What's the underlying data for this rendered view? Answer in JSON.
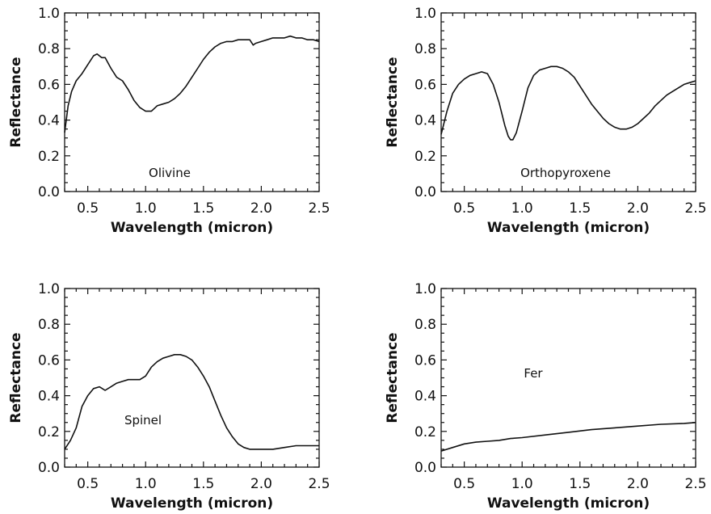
{
  "chart_data": [
    {
      "type": "line",
      "annotation": "Olivine",
      "xlabel": "Wavelength (micron)",
      "ylabel": "Reflectance",
      "xlim": [
        0.3,
        2.5
      ],
      "ylim": [
        0.0,
        1.0
      ],
      "xticks": [
        "0.5",
        "1.0",
        "1.5",
        "2.0",
        "2.5"
      ],
      "yticks": [
        "0.0",
        "0.2",
        "0.4",
        "0.6",
        "0.8",
        "1.0"
      ],
      "series": [
        {
          "x": [
            0.3,
            0.33,
            0.36,
            0.4,
            0.45,
            0.5,
            0.55,
            0.58,
            0.62,
            0.65,
            0.7,
            0.75,
            0.8,
            0.85,
            0.9,
            0.95,
            1.0,
            1.05,
            1.1,
            1.15,
            1.2,
            1.25,
            1.3,
            1.35,
            1.4,
            1.45,
            1.5,
            1.55,
            1.6,
            1.65,
            1.7,
            1.75,
            1.8,
            1.85,
            1.9,
            1.93,
            1.95,
            2.0,
            2.05,
            2.1,
            2.15,
            2.2,
            2.25,
            2.3,
            2.35,
            2.4,
            2.45,
            2.5
          ],
          "y": [
            0.33,
            0.48,
            0.56,
            0.62,
            0.66,
            0.71,
            0.76,
            0.77,
            0.75,
            0.75,
            0.69,
            0.64,
            0.62,
            0.57,
            0.51,
            0.47,
            0.45,
            0.45,
            0.48,
            0.49,
            0.5,
            0.52,
            0.55,
            0.59,
            0.64,
            0.69,
            0.74,
            0.78,
            0.81,
            0.83,
            0.84,
            0.84,
            0.85,
            0.85,
            0.85,
            0.82,
            0.83,
            0.84,
            0.85,
            0.86,
            0.86,
            0.86,
            0.87,
            0.86,
            0.86,
            0.85,
            0.85,
            0.84
          ]
        }
      ]
    },
    {
      "type": "line",
      "annotation": "Orthopyroxene",
      "xlabel": "Wavelength (micron)",
      "ylabel": "Reflectance",
      "xlim": [
        0.3,
        2.5
      ],
      "ylim": [
        0.0,
        1.0
      ],
      "xticks": [
        "0.5",
        "1.0",
        "1.5",
        "2.0",
        "2.5"
      ],
      "yticks": [
        "0.0",
        "0.2",
        "0.4",
        "0.6",
        "0.8",
        "1.0"
      ],
      "series": [
        {
          "x": [
            0.3,
            0.35,
            0.4,
            0.45,
            0.5,
            0.55,
            0.6,
            0.65,
            0.7,
            0.75,
            0.8,
            0.85,
            0.88,
            0.9,
            0.92,
            0.95,
            1.0,
            1.05,
            1.1,
            1.15,
            1.2,
            1.25,
            1.3,
            1.35,
            1.4,
            1.45,
            1.5,
            1.55,
            1.6,
            1.65,
            1.7,
            1.75,
            1.8,
            1.85,
            1.9,
            1.95,
            2.0,
            2.05,
            2.1,
            2.15,
            2.2,
            2.25,
            2.3,
            2.35,
            2.4,
            2.45,
            2.5
          ],
          "y": [
            0.32,
            0.45,
            0.55,
            0.6,
            0.63,
            0.65,
            0.66,
            0.67,
            0.66,
            0.6,
            0.5,
            0.37,
            0.31,
            0.29,
            0.29,
            0.33,
            0.45,
            0.58,
            0.65,
            0.68,
            0.69,
            0.7,
            0.7,
            0.69,
            0.67,
            0.64,
            0.59,
            0.54,
            0.49,
            0.45,
            0.41,
            0.38,
            0.36,
            0.35,
            0.35,
            0.36,
            0.38,
            0.41,
            0.44,
            0.48,
            0.51,
            0.54,
            0.56,
            0.58,
            0.6,
            0.61,
            0.62
          ]
        }
      ]
    },
    {
      "type": "line",
      "annotation": "Spinel",
      "xlabel": "Wavelength (micron)",
      "ylabel": "Reflectance",
      "xlim": [
        0.3,
        2.5
      ],
      "ylim": [
        0.0,
        1.0
      ],
      "xticks": [
        "0.5",
        "1.0",
        "1.5",
        "2.0",
        "2.5"
      ],
      "yticks": [
        "0.0",
        "0.2",
        "0.4",
        "0.6",
        "0.8",
        "1.0"
      ],
      "series": [
        {
          "x": [
            0.3,
            0.35,
            0.4,
            0.45,
            0.5,
            0.55,
            0.6,
            0.65,
            0.7,
            0.75,
            0.8,
            0.85,
            0.9,
            0.95,
            1.0,
            1.05,
            1.1,
            1.15,
            1.2,
            1.25,
            1.3,
            1.35,
            1.4,
            1.45,
            1.5,
            1.55,
            1.6,
            1.65,
            1.7,
            1.75,
            1.8,
            1.85,
            1.9,
            1.95,
            2.0,
            2.1,
            2.2,
            2.3,
            2.4,
            2.5
          ],
          "y": [
            0.1,
            0.15,
            0.22,
            0.34,
            0.4,
            0.44,
            0.45,
            0.43,
            0.45,
            0.47,
            0.48,
            0.49,
            0.49,
            0.49,
            0.51,
            0.56,
            0.59,
            0.61,
            0.62,
            0.63,
            0.63,
            0.62,
            0.6,
            0.56,
            0.51,
            0.45,
            0.37,
            0.29,
            0.22,
            0.17,
            0.13,
            0.11,
            0.1,
            0.1,
            0.1,
            0.1,
            0.11,
            0.12,
            0.12,
            0.12
          ]
        }
      ]
    },
    {
      "type": "line",
      "annotation": "Fer",
      "xlabel": "Wavelength (micron)",
      "ylabel": "Reflectance",
      "xlim": [
        0.3,
        2.5
      ],
      "ylim": [
        0.0,
        1.0
      ],
      "xticks": [
        "0.5",
        "1.0",
        "1.5",
        "2.0",
        "2.5"
      ],
      "yticks": [
        "0.0",
        "0.2",
        "0.4",
        "0.6",
        "0.8",
        "1.0"
      ],
      "series": [
        {
          "x": [
            0.3,
            0.4,
            0.5,
            0.6,
            0.7,
            0.8,
            0.9,
            1.0,
            1.2,
            1.4,
            1.6,
            1.8,
            2.0,
            2.2,
            2.4,
            2.5
          ],
          "y": [
            0.09,
            0.11,
            0.13,
            0.14,
            0.145,
            0.15,
            0.16,
            0.165,
            0.18,
            0.195,
            0.21,
            0.22,
            0.23,
            0.24,
            0.245,
            0.25
          ]
        }
      ]
    }
  ]
}
